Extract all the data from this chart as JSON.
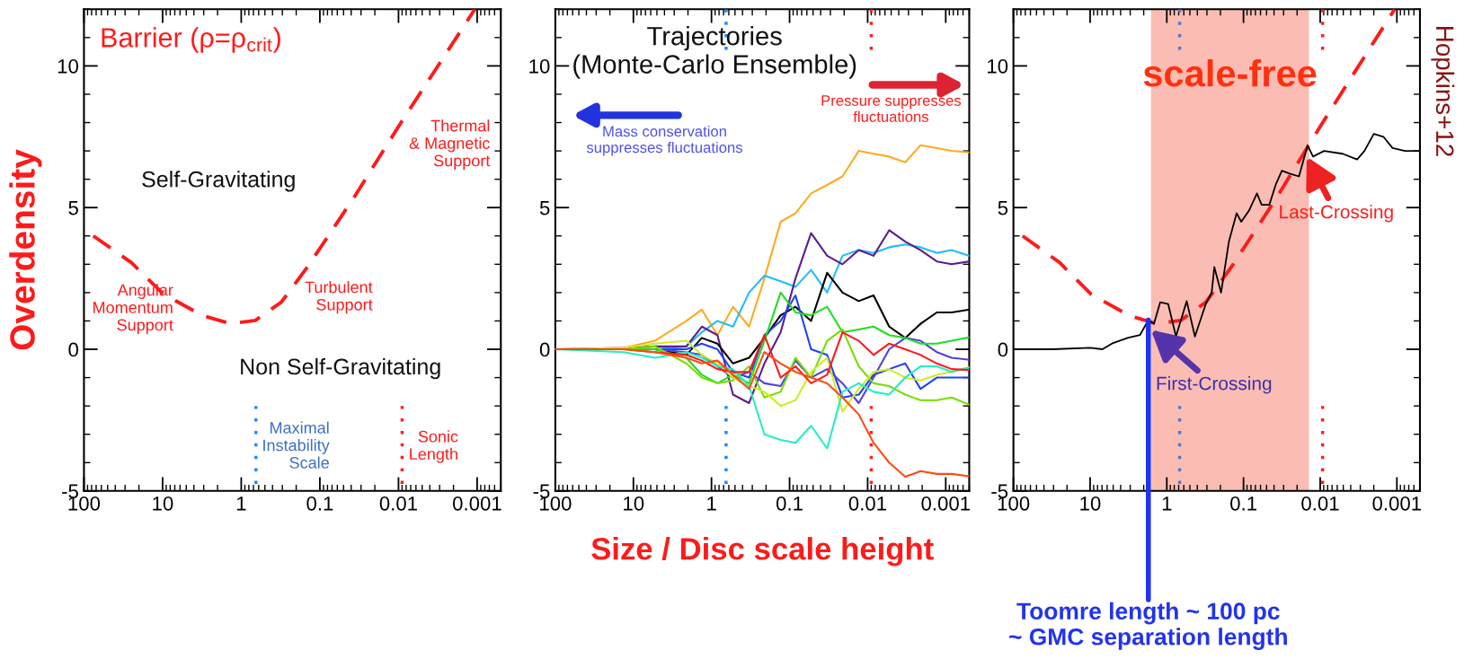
{
  "chart_data": [
    {
      "type": "line",
      "ylabel": "Overdensity",
      "log": "x",
      "xlim": [
        100,
        0.0005
      ],
      "xticks": [
        100,
        10,
        1,
        0.1,
        0.01,
        0.001
      ],
      "ylim": [
        -5,
        12
      ],
      "yticks": [
        -5,
        0,
        5,
        10
      ],
      "series": [
        {
          "color": "#ff1a1a",
          "line_style": "dashed",
          "x": [
            76,
            25,
            9.8,
            3.1,
            1.36,
            0.66,
            0.31,
            0.14,
            0.037,
            0.0098,
            0.00107
          ],
          "values": [
            4.0,
            3.06,
            1.95,
            1.19,
            0.9,
            1.02,
            1.66,
            2.95,
            5.35,
            7.9,
            12.0
          ]
        },
        {
          "color": "#2288ff",
          "line_style": "dotted",
          "x": [
            0.65,
            0.65
          ],
          "values": [
            -2,
            -5
          ]
        },
        {
          "color": "#ff2020",
          "line_style": "dotted",
          "x": [
            0.009,
            0.009
          ],
          "values": [
            -2,
            -5
          ]
        }
      ],
      "annotations": [
        "Barrier (ρ=ρ$_{crit}$)",
        "Self-Gravitating",
        "Non Self-Gravitating",
        "Angular\nMomentum\nSupport",
        "Turbulent\nSupport",
        "Thermal\n& Magnetic\nSupport",
        "Maximal\nInstability\nScale",
        "Sonic\nLength"
      ]
    },
    {
      "type": "line",
      "xlabel": "Size / Disc scale height",
      "log": "x",
      "xlim": [
        100,
        0.0005
      ],
      "xticks": [
        100,
        10,
        1,
        0.1,
        0.01,
        0.001
      ],
      "ylim": [
        -5,
        12
      ],
      "yticks": [
        -5,
        0,
        5,
        10
      ],
      "x": [
        100,
        13.3,
        5.3,
        2.1,
        1.33,
        0.84,
        0.53,
        0.33,
        0.21,
        0.13,
        0.084,
        0.053,
        0.033,
        0.021,
        0.013,
        0.0084,
        0.0053,
        0.0033,
        0.0021,
        0.0013,
        0.00084,
        0.0005
      ],
      "series": [
        {
          "color": "#ffaa22",
          "values": [
            0,
            0.05,
            0.3,
            1.0,
            1.4,
            0.5,
            1.5,
            0.8,
            2.5,
            4.5,
            4.8,
            5.5,
            5.8,
            6.1,
            7.0,
            6.9,
            6.8,
            6.6,
            7.2,
            7.1,
            7.0,
            6.95
          ]
        },
        {
          "color": "#22bbff",
          "values": [
            0,
            0,
            0,
            0.1,
            0.6,
            1.0,
            0.8,
            2.0,
            2.6,
            2.4,
            2.2,
            2.8,
            2.0,
            3.3,
            3.5,
            3.4,
            3.6,
            3.7,
            3.6,
            3.4,
            3.5,
            3.3
          ]
        },
        {
          "color": "#5b1e8c",
          "values": [
            0,
            0.05,
            0.1,
            0.1,
            0.8,
            0.5,
            -1.6,
            -1.9,
            -0.5,
            0.6,
            2.5,
            4.1,
            3.3,
            3.0,
            3.5,
            3.3,
            4.2,
            3.8,
            3.5,
            3.1,
            3.0,
            3.1
          ]
        },
        {
          "color": "#000000",
          "values": [
            0,
            0,
            0,
            -0.2,
            0.4,
            0.2,
            -0.5,
            -0.3,
            0.4,
            1.2,
            1.5,
            1.0,
            2.7,
            2.0,
            1.7,
            1.9,
            0.8,
            0.4,
            0.9,
            1.3,
            1.3,
            1.4
          ]
        },
        {
          "color": "#1f3fff",
          "values": [
            0,
            0,
            0,
            0,
            0.2,
            0,
            -0.8,
            -1.0,
            0.5,
            1.0,
            1.9,
            0,
            -0.2,
            -1.7,
            -1.6,
            -0.9,
            -0.7,
            -0.5,
            -1.4,
            -1.0,
            -1.0,
            -1.0
          ]
        },
        {
          "color": "#5040e0",
          "values": [
            0,
            0,
            0,
            -0.1,
            -0.2,
            -0.6,
            -1.0,
            -0.8,
            -1.2,
            -1.3,
            -0.4,
            -1.0,
            -0.7,
            -1.2,
            -1.9,
            -1.0,
            0.0,
            0.4,
            0.3,
            -0.1,
            -0.3,
            -0.37
          ]
        },
        {
          "color": "#22dd22",
          "values": [
            0,
            0,
            0,
            -0.3,
            -0.9,
            -1.2,
            -0.9,
            -1.2,
            0.3,
            2.0,
            1.3,
            1.2,
            1.5,
            0.6,
            0.7,
            0.8,
            0.5,
            0.4,
            0.2,
            0.2,
            0.3,
            0.42
          ]
        },
        {
          "color": "#77dd00",
          "values": [
            0,
            0,
            0.1,
            -0.5,
            -1.0,
            -1.2,
            -1.1,
            -0.6,
            -1.7,
            -1.5,
            -0.3,
            -1.0,
            0.3,
            0.7,
            -0.6,
            -1.2,
            -1.3,
            -1.6,
            -1.8,
            -1.8,
            -1.7,
            -1.95
          ]
        },
        {
          "color": "#ccee22",
          "values": [
            0,
            0.05,
            0.2,
            0.3,
            -0.2,
            -0.5,
            -1.0,
            -1.3,
            -1.5,
            -2.0,
            -1.8,
            -0.8,
            -0.3,
            -2.2,
            -1.4,
            -0.8,
            -0.7,
            -1.0,
            -1.1,
            -0.9,
            -0.8,
            -0.63
          ]
        },
        {
          "color": "#22eec8",
          "values": [
            0,
            -0.1,
            -0.3,
            -0.1,
            -0.3,
            -0.6,
            -0.7,
            -1.3,
            -3.0,
            -3.2,
            -3.3,
            -2.7,
            -3.5,
            -1.5,
            -1.2,
            -1.5,
            -1.6,
            -1.0,
            -0.6,
            -0.6,
            -0.8,
            -0.65
          ]
        },
        {
          "color": "#ff1a1a",
          "values": [
            0,
            0,
            -0.1,
            -0.2,
            -0.4,
            -0.7,
            -0.8,
            -0.8,
            0.5,
            -1.0,
            -0.6,
            -1.2,
            -0.9,
            0.6,
            0.3,
            -0.2,
            0.2,
            0.0,
            -0.2,
            -0.5,
            -0.7,
            -0.73
          ]
        },
        {
          "color": "#ff4a10",
          "values": [
            0,
            0,
            -0.1,
            -0.3,
            -0.5,
            -0.4,
            -0.9,
            -1.4,
            -0.1,
            -0.5,
            -0.8,
            -1.0,
            -1.2,
            -1.7,
            -2.3,
            -3.3,
            -4.0,
            -4.5,
            -4.3,
            -4.4,
            -4.4,
            -4.48
          ]
        },
        {
          "color": "#2288ff",
          "line_style": "dotted",
          "x": [
            0.65,
            0.65
          ],
          "values": [
            12,
            10.5
          ]
        },
        {
          "color": "#2288ff",
          "line_style": "dotted",
          "x": [
            0.65,
            0.65
          ],
          "values": [
            -2,
            -5
          ]
        },
        {
          "color": "#ff2020",
          "line_style": "dotted",
          "x": [
            0.009,
            0.009
          ],
          "values": [
            12,
            10.5
          ]
        },
        {
          "color": "#ff2020",
          "line_style": "dotted",
          "x": [
            0.009,
            0.009
          ],
          "values": [
            -2,
            -5
          ]
        }
      ],
      "annotations": [
        "Trajectories\n(Monte-Carlo Ensemble)",
        "Mass conservation\nsuppresses fluctuations",
        "Pressure suppresses\nfluctuations"
      ]
    },
    {
      "type": "line",
      "log": "x",
      "xlim": [
        100,
        0.0005
      ],
      "xticks": [
        100,
        10,
        1,
        0.1,
        0.01,
        0.001
      ],
      "ylim": [
        -5,
        12
      ],
      "yticks": [
        -5,
        0,
        5,
        10
      ],
      "bands": [
        {
          "axis": "x",
          "from": 1.61,
          "to": 0.014,
          "label": "scale-free",
          "color": "#fbbdb3"
        }
      ],
      "series": [
        {
          "color": "#ff1a1a",
          "line_style": "dashed",
          "x": [
            76,
            25,
            9.8,
            3.1,
            1.36,
            0.66,
            0.31,
            0.14,
            0.037,
            0.0098,
            0.00107
          ],
          "values": [
            4.0,
            3.06,
            1.95,
            1.19,
            0.9,
            1.02,
            1.66,
            2.95,
            5.35,
            7.9,
            12.0
          ]
        },
        {
          "color": "#5577cc",
          "line_style": "dotted",
          "x": [
            0.68,
            0.68
          ],
          "values": [
            12,
            10.5
          ]
        },
        {
          "color": "#5577cc",
          "line_style": "dotted",
          "x": [
            0.68,
            0.68
          ],
          "values": [
            -2,
            -5
          ]
        },
        {
          "color": "#ff2020",
          "line_style": "dotted",
          "x": [
            0.0093,
            0.0093
          ],
          "values": [
            12,
            10.5
          ]
        },
        {
          "color": "#ff2020",
          "line_style": "dotted",
          "x": [
            0.0093,
            0.0093
          ],
          "values": [
            -2,
            -5
          ]
        },
        {
          "color": "#000000",
          "x": [
            100,
            30.8,
            10,
            6.9,
            5.2,
            3.25,
            2.24,
            1.74,
            1.47,
            1.22,
            0.96,
            0.76,
            0.55,
            0.43,
            0.31,
            0.26,
            0.24,
            0.196,
            0.155,
            0.123,
            0.107,
            0.0845,
            0.0668,
            0.058,
            0.046,
            0.0381,
            0.0316,
            0.025,
            0.0189,
            0.0146,
            0.0124,
            0.0089,
            0.0051,
            0.0033,
            0.00265,
            0.002,
            0.0015,
            0.00114,
            0.00078,
            0.0005
          ],
          "values": [
            0,
            0,
            0.05,
            0,
            0.2,
            0.4,
            0.5,
            1.03,
            0.9,
            1.66,
            1.6,
            0.45,
            1.7,
            0.45,
            1.6,
            2.0,
            2.9,
            2.0,
            3.8,
            4.8,
            4.5,
            4.9,
            5.5,
            5.1,
            5.1,
            5.8,
            6.3,
            6.2,
            6.1,
            7.2,
            6.8,
            7.0,
            6.9,
            6.7,
            7.0,
            7.6,
            7.5,
            7.1,
            7.0,
            7.0
          ]
        }
      ],
      "annotations": [
        {
          "text": "First-Crossing",
          "x": 1.61,
          "y": 0.69
        },
        {
          "text": "Last-Crossing",
          "x": 0.015,
          "y": 6.8
        },
        {
          "text": "Toomre length ~ 100 pc\n~ GMC separation length",
          "x": 1.74,
          "y": 1.03
        },
        "Hopkins+12"
      ]
    }
  ]
}
